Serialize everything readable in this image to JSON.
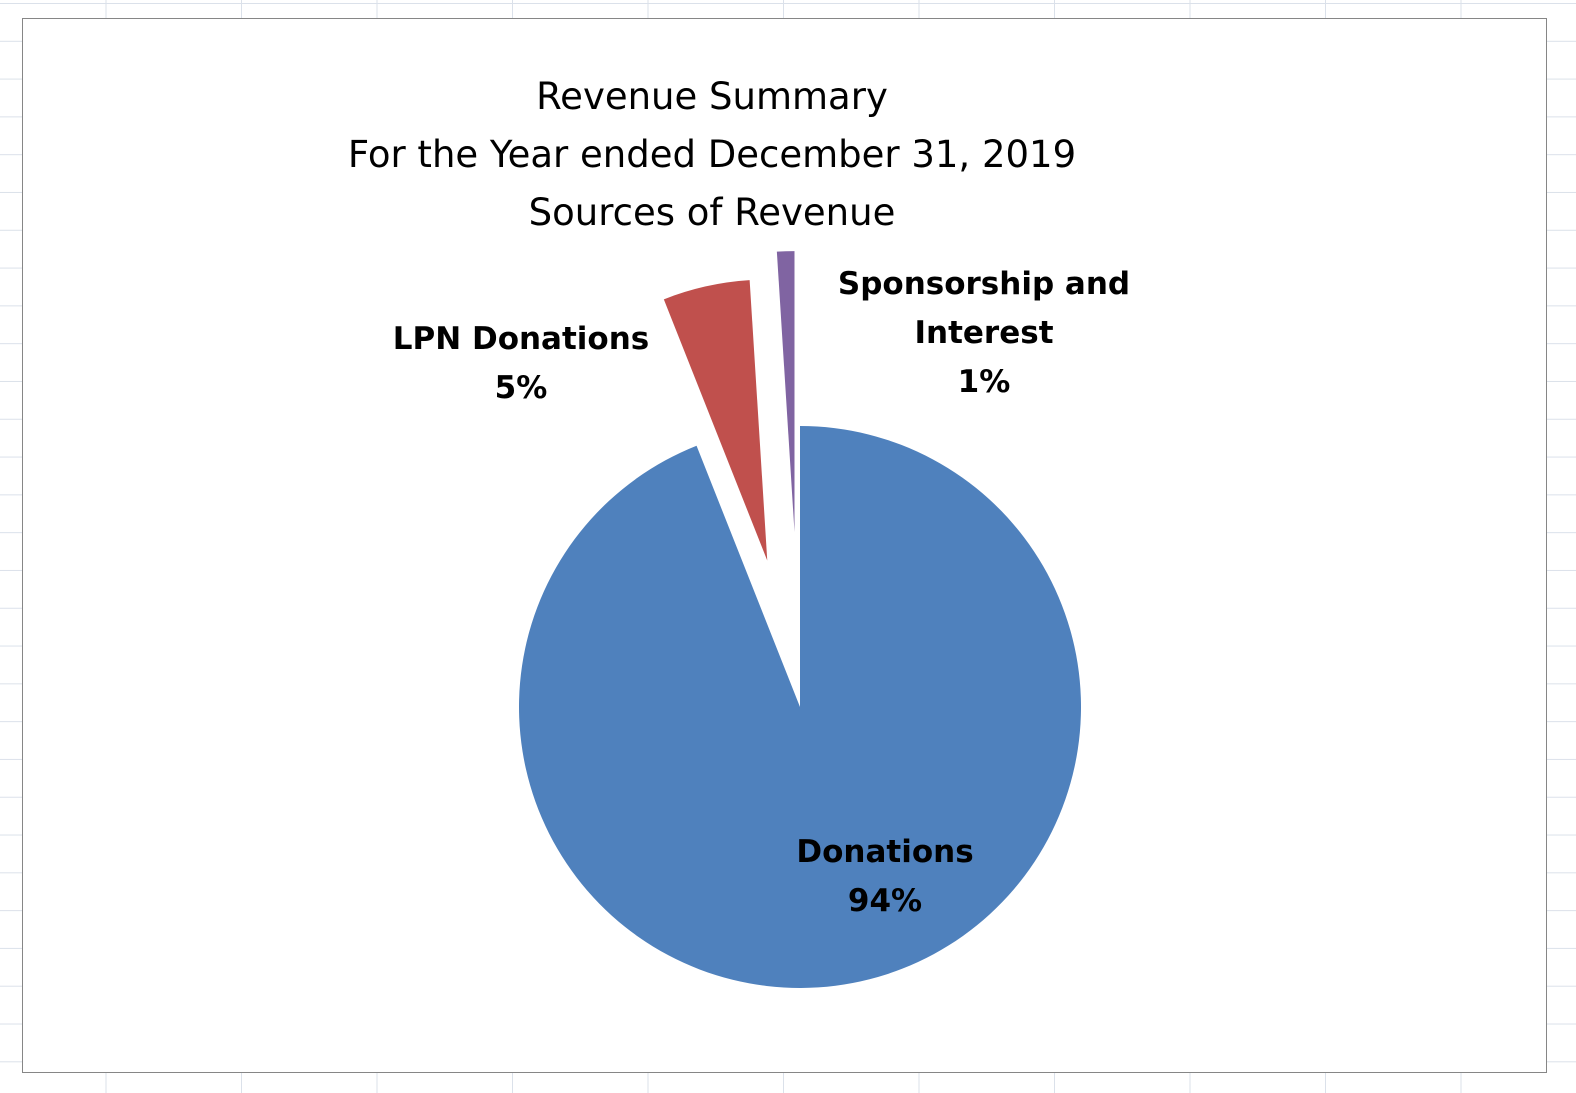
{
  "chart_data": {
    "type": "pie",
    "title": [
      "Revenue Summary",
      "For the Year ended December 31, 2019",
      "Sources of Revenue"
    ],
    "exploded": true,
    "legend": false,
    "slices": [
      {
        "name": "Donations",
        "value": 94,
        "label": "94%",
        "color": "#4F81BD",
        "label_lines": [
          "Donations",
          "94%"
        ]
      },
      {
        "name": "LPN Donations",
        "value": 5,
        "label": "5%",
        "color": "#C0504D",
        "label_lines": [
          "LPN Donations",
          "5%"
        ]
      },
      {
        "name": "Sponsorship and Interest",
        "value": 1,
        "label": "1%",
        "color": "#8064A2",
        "label_lines": [
          "Sponsorship and",
          "Interest",
          "1%"
        ]
      }
    ]
  }
}
